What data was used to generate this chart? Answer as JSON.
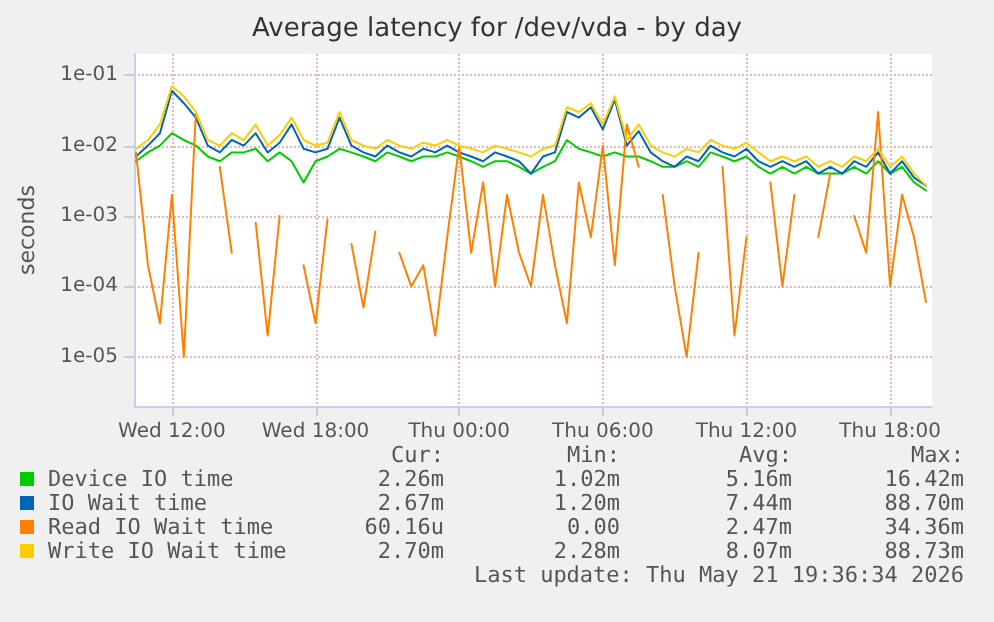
{
  "chart_data": {
    "type": "line",
    "title": "Average latency for /dev/vda - by day",
    "ylabel": "seconds",
    "log": "y",
    "grid": true,
    "legend": "bottom left",
    "xlim": [
      "2026-05-20T10:25",
      "2026-05-21T19:45"
    ],
    "xticks": [
      {
        "value": "2026-05-20T12:00",
        "label": "Wed 12:00"
      },
      {
        "value": "2026-05-20T18:00",
        "label": "Wed 18:00"
      },
      {
        "value": "2026-05-21T00:00",
        "label": "Thu 00:00"
      },
      {
        "value": "2026-05-21T06:00",
        "label": "Thu 06:00"
      },
      {
        "value": "2026-05-21T12:00",
        "label": "Thu 12:00"
      },
      {
        "value": "2026-05-21T18:00",
        "label": "Thu 18:00"
      }
    ],
    "ylim": [
      2e-06,
      0.2
    ],
    "yticks": [
      {
        "value": 1e-05,
        "label": "1e-05"
      },
      {
        "value": 0.0001,
        "label": "1e-04"
      },
      {
        "value": 0.001,
        "label": "1e-03"
      },
      {
        "value": 0.01,
        "label": "1e-02"
      },
      {
        "value": 0.1,
        "label": "1e-01"
      }
    ],
    "x": [
      "2026-05-20T10:30",
      "2026-05-20T11:00",
      "2026-05-20T11:30",
      "2026-05-20T12:00",
      "2026-05-20T12:30",
      "2026-05-20T13:00",
      "2026-05-20T13:30",
      "2026-05-20T14:00",
      "2026-05-20T14:30",
      "2026-05-20T15:00",
      "2026-05-20T15:30",
      "2026-05-20T16:00",
      "2026-05-20T16:30",
      "2026-05-20T17:00",
      "2026-05-20T17:30",
      "2026-05-20T18:00",
      "2026-05-20T18:30",
      "2026-05-20T19:00",
      "2026-05-20T19:30",
      "2026-05-20T20:00",
      "2026-05-20T20:30",
      "2026-05-20T21:00",
      "2026-05-20T21:30",
      "2026-05-20T22:00",
      "2026-05-20T22:30",
      "2026-05-20T23:00",
      "2026-05-20T23:30",
      "2026-05-21T00:00",
      "2026-05-21T00:30",
      "2026-05-21T01:00",
      "2026-05-21T01:30",
      "2026-05-21T02:00",
      "2026-05-21T02:30",
      "2026-05-21T03:00",
      "2026-05-21T03:30",
      "2026-05-21T04:00",
      "2026-05-21T04:30",
      "2026-05-21T05:00",
      "2026-05-21T05:30",
      "2026-05-21T06:00",
      "2026-05-21T06:30",
      "2026-05-21T07:00",
      "2026-05-21T07:30",
      "2026-05-21T08:00",
      "2026-05-21T08:30",
      "2026-05-21T09:00",
      "2026-05-21T09:30",
      "2026-05-21T10:00",
      "2026-05-21T10:30",
      "2026-05-21T11:00",
      "2026-05-21T11:30",
      "2026-05-21T12:00",
      "2026-05-21T12:30",
      "2026-05-21T13:00",
      "2026-05-21T13:30",
      "2026-05-21T14:00",
      "2026-05-21T14:30",
      "2026-05-21T15:00",
      "2026-05-21T15:30",
      "2026-05-21T16:00",
      "2026-05-21T16:30",
      "2026-05-21T17:00",
      "2026-05-21T17:30",
      "2026-05-21T18:00",
      "2026-05-21T18:30",
      "2026-05-21T19:00",
      "2026-05-21T19:30"
    ],
    "series": [
      {
        "name": "Device IO time",
        "color": "#00cc00",
        "values": [
          0.006,
          0.008,
          0.01,
          0.015,
          0.012,
          0.01,
          0.007,
          0.006,
          0.008,
          0.008,
          0.009,
          0.006,
          0.008,
          0.006,
          0.003,
          0.006,
          0.007,
          0.009,
          0.008,
          0.007,
          0.006,
          0.008,
          0.007,
          0.006,
          0.007,
          0.007,
          0.008,
          0.007,
          0.006,
          0.005,
          0.006,
          0.006,
          0.005,
          0.004,
          0.005,
          0.006,
          0.012,
          0.009,
          0.008,
          0.007,
          0.008,
          0.007,
          0.007,
          0.006,
          0.005,
          0.005,
          0.006,
          0.005,
          0.008,
          0.007,
          0.006,
          0.007,
          0.005,
          0.004,
          0.005,
          0.004,
          0.005,
          0.004,
          0.004,
          0.004,
          0.005,
          0.004,
          0.006,
          0.004,
          0.005,
          0.003,
          0.0023
        ]
      },
      {
        "name": "IO Wait time",
        "color": "#0066b3",
        "values": [
          0.007,
          0.01,
          0.015,
          0.06,
          0.04,
          0.025,
          0.01,
          0.008,
          0.012,
          0.01,
          0.015,
          0.008,
          0.011,
          0.02,
          0.009,
          0.008,
          0.009,
          0.025,
          0.01,
          0.008,
          0.007,
          0.01,
          0.008,
          0.007,
          0.009,
          0.008,
          0.01,
          0.008,
          0.007,
          0.006,
          0.008,
          0.007,
          0.006,
          0.004,
          0.007,
          0.008,
          0.03,
          0.025,
          0.035,
          0.017,
          0.045,
          0.01,
          0.016,
          0.008,
          0.006,
          0.005,
          0.007,
          0.006,
          0.01,
          0.008,
          0.007,
          0.009,
          0.006,
          0.005,
          0.006,
          0.005,
          0.006,
          0.004,
          0.005,
          0.004,
          0.006,
          0.005,
          0.008,
          0.004,
          0.006,
          0.0035,
          0.0027
        ]
      },
      {
        "name": "Read IO Wait time",
        "color": "#ff8000",
        "values": [
          0.008,
          0.0002,
          3e-05,
          0.002,
          1e-05,
          0.03,
          null,
          0.005,
          0.0003,
          null,
          0.0008,
          2e-05,
          0.001,
          null,
          0.0002,
          3e-05,
          0.0009,
          null,
          0.0004,
          5e-05,
          0.0006,
          null,
          0.0003,
          0.0001,
          0.0002,
          2e-05,
          0.0005,
          0.01,
          0.0003,
          0.003,
          0.0001,
          0.002,
          0.0003,
          0.0001,
          0.002,
          0.0002,
          3e-05,
          0.003,
          0.0005,
          0.01,
          0.0002,
          0.02,
          0.005,
          null,
          0.002,
          0.0001,
          1e-05,
          0.0003,
          null,
          0.005,
          2e-05,
          0.0005,
          null,
          0.003,
          0.0001,
          0.002,
          null,
          0.0005,
          0.004,
          null,
          0.001,
          0.0003,
          0.03,
          0.0001,
          0.002,
          0.0005,
          6e-05
        ]
      },
      {
        "name": "Write IO Wait time",
        "color": "#ffcc00",
        "values": [
          0.009,
          0.012,
          0.02,
          0.07,
          0.05,
          0.03,
          0.012,
          0.01,
          0.015,
          0.012,
          0.02,
          0.01,
          0.014,
          0.025,
          0.012,
          0.01,
          0.011,
          0.03,
          0.012,
          0.01,
          0.009,
          0.012,
          0.01,
          0.009,
          0.011,
          0.01,
          0.012,
          0.01,
          0.009,
          0.008,
          0.01,
          0.009,
          0.008,
          0.007,
          0.009,
          0.01,
          0.035,
          0.03,
          0.04,
          0.02,
          0.05,
          0.012,
          0.02,
          0.01,
          0.008,
          0.007,
          0.009,
          0.008,
          0.012,
          0.01,
          0.009,
          0.011,
          0.008,
          0.006,
          0.007,
          0.006,
          0.007,
          0.005,
          0.006,
          0.005,
          0.007,
          0.006,
          0.009,
          0.005,
          0.007,
          0.004,
          0.0027
        ]
      }
    ],
    "annotations": [
      "Cur:",
      "Min:",
      "Avg:",
      "Max:",
      "2.26m",
      "1.02m",
      "5.16m",
      "16.42m",
      "2.67m",
      "1.20m",
      "7.44m",
      "88.70m",
      "60.16u",
      "0.00",
      "2.47m",
      "34.36m",
      "2.70m",
      "2.28m",
      "8.07m",
      "88.73m",
      "Last update: Thu May 21 19:36:34 2026"
    ]
  }
}
